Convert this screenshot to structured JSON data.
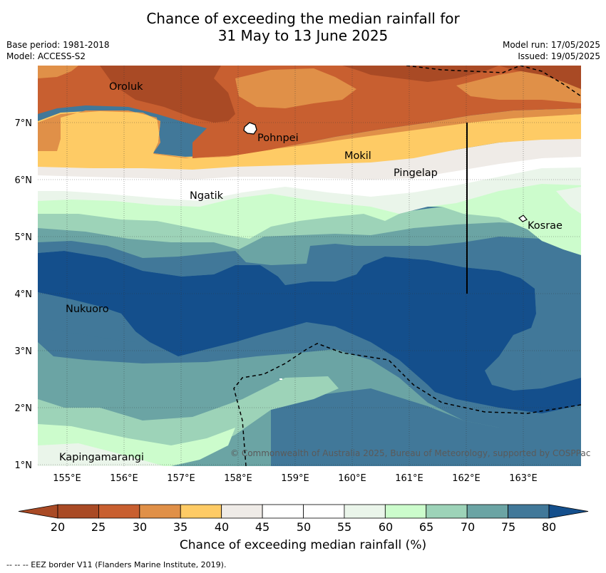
{
  "header": {
    "title_line1": "Chance of exceeding the median rainfall for",
    "title_line2": "31 May to 13 June 2025",
    "base_period": "Base period: 1981-2018",
    "model": "Model: ACCESS-S2",
    "model_run": "Model run: 17/05/2025",
    "issued": "Issued: 19/05/2025"
  },
  "map": {
    "lon_ticks": [
      "155°E",
      "156°E",
      "157°E",
      "158°E",
      "159°E",
      "160°E",
      "161°E",
      "162°E",
      "163°E"
    ],
    "lat_ticks": [
      "7°N",
      "6°N",
      "5°N",
      "4°N",
      "3°N",
      "2°N",
      "1°N"
    ],
    "places": [
      {
        "name": "Oroluk"
      },
      {
        "name": "Pohnpei"
      },
      {
        "name": "Mokil"
      },
      {
        "name": "Pingelap"
      },
      {
        "name": "Ngatik"
      },
      {
        "name": "Kosrae"
      },
      {
        "name": "Nukuoro"
      },
      {
        "name": "Kapingamarangi"
      }
    ],
    "copyright": "© Commonwealth of Australia 2025, Bureau of Meteorology, supported by COSPPac"
  },
  "colorbar": {
    "title": "Chance of exceeding median rainfall (%)",
    "labels": [
      "20",
      "25",
      "30",
      "35",
      "40",
      "45",
      "50",
      "55",
      "60",
      "65",
      "70",
      "75",
      "80"
    ],
    "colors": [
      "#a94a25",
      "#c85f30",
      "#e09048",
      "#fecb65",
      "#efebe7",
      "#ffffff",
      "#ffffff",
      "#eaf5ea",
      "#ccfccc",
      "#9dd3b8",
      "#6ba4a4",
      "#417899",
      "#144f8c"
    ]
  },
  "footnote": "--  --  -- EEZ border V11 (Flanders Marine Institute, 2019)."
}
